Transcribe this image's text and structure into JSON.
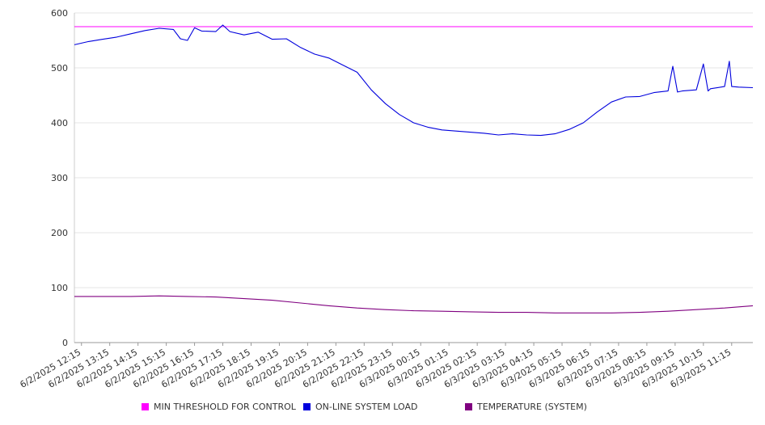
{
  "chart_data": {
    "type": "line",
    "ylim": [
      0,
      600
    ],
    "yticks": [
      0,
      100,
      200,
      300,
      400,
      500,
      600
    ],
    "xtick_labels": [
      "6/2/2025 12:15",
      "6/2/2025 13:15",
      "6/2/2025 14:15",
      "6/2/2025 15:15",
      "6/2/2025 16:15",
      "6/2/2025 17:15",
      "6/2/2025 18:15",
      "6/2/2025 19:15",
      "6/2/2025 20:15",
      "6/2/2025 21:15",
      "6/2/2025 22:15",
      "6/2/2025 23:15",
      "6/3/2025 00:15",
      "6/3/2025 01:15",
      "6/3/2025 02:15",
      "6/3/2025 03:15",
      "6/3/2025 04:15",
      "6/3/2025 05:15",
      "6/3/2025 06:15",
      "6/3/2025 07:15",
      "6/3/2025 08:15",
      "6/3/2025 09:15",
      "6/3/2025 10:15",
      "6/3/2025 11:15"
    ],
    "x_start": "6/2/2025 12:00",
    "x_end": "6/3/2025 12:00",
    "grid": true,
    "legend_position": "bottom",
    "series": [
      {
        "name": "MIN THRESHOLD FOR CONTROL",
        "color": "#ff00ff",
        "x": [
          "6/2/2025 12:00",
          "6/3/2025 12:00"
        ],
        "values": [
          575,
          575
        ]
      },
      {
        "name": "ON-LINE SYSTEM LOAD",
        "color": "#0000dd",
        "x": [
          "6/2/2025 12:00",
          "6/2/2025 12:30",
          "6/2/2025 13:00",
          "6/2/2025 13:30",
          "6/2/2025 14:00",
          "6/2/2025 14:30",
          "6/2/2025 15:00",
          "6/2/2025 15:30",
          "6/2/2025 15:45",
          "6/2/2025 16:00",
          "6/2/2025 16:15",
          "6/2/2025 16:30",
          "6/2/2025 17:00",
          "6/2/2025 17:15",
          "6/2/2025 17:30",
          "6/2/2025 18:00",
          "6/2/2025 18:30",
          "6/2/2025 19:00",
          "6/2/2025 19:30",
          "6/2/2025 20:00",
          "6/2/2025 20:30",
          "6/2/2025 21:00",
          "6/2/2025 21:30",
          "6/2/2025 22:00",
          "6/2/2025 22:30",
          "6/2/2025 23:00",
          "6/2/2025 23:30",
          "6/3/2025 00:00",
          "6/3/2025 00:30",
          "6/3/2025 01:00",
          "6/3/2025 01:30",
          "6/3/2025 02:00",
          "6/3/2025 02:30",
          "6/3/2025 03:00",
          "6/3/2025 03:30",
          "6/3/2025 04:00",
          "6/3/2025 04:30",
          "6/3/2025 05:00",
          "6/3/2025 05:30",
          "6/3/2025 06:00",
          "6/3/2025 06:30",
          "6/3/2025 07:00",
          "6/3/2025 07:30",
          "6/3/2025 08:00",
          "6/3/2025 08:30",
          "6/3/2025 09:00",
          "6/3/2025 09:10",
          "6/3/2025 09:20",
          "6/3/2025 09:30",
          "6/3/2025 10:00",
          "6/3/2025 10:15",
          "6/3/2025 10:25",
          "6/3/2025 10:30",
          "6/3/2025 11:00",
          "6/3/2025 11:10",
          "6/3/2025 11:15",
          "6/3/2025 11:30",
          "6/3/2025 12:00"
        ],
        "values": [
          542,
          548,
          552,
          556,
          562,
          568,
          572,
          570,
          553,
          550,
          573,
          567,
          566,
          578,
          566,
          560,
          565,
          552,
          553,
          537,
          525,
          518,
          505,
          492,
          460,
          435,
          415,
          400,
          392,
          387,
          385,
          383,
          381,
          378,
          380,
          378,
          377,
          380,
          388,
          400,
          420,
          438,
          447,
          448,
          455,
          458,
          503,
          456,
          458,
          460,
          507,
          458,
          462,
          466,
          512,
          466,
          465,
          464
        ]
      },
      {
        "name": "TEMPERATURE (SYSTEM)",
        "color": "#800080",
        "x": [
          "6/2/2025 12:00",
          "6/2/2025 14:00",
          "6/2/2025 15:00",
          "6/2/2025 16:00",
          "6/2/2025 17:00",
          "6/2/2025 18:00",
          "6/2/2025 19:00",
          "6/2/2025 20:00",
          "6/2/2025 21:00",
          "6/2/2025 22:00",
          "6/2/2025 23:00",
          "6/3/2025 00:00",
          "6/3/2025 01:00",
          "6/3/2025 02:00",
          "6/3/2025 03:00",
          "6/3/2025 04:00",
          "6/3/2025 05:00",
          "6/3/2025 06:00",
          "6/3/2025 07:00",
          "6/3/2025 08:00",
          "6/3/2025 09:00",
          "6/3/2025 10:00",
          "6/3/2025 11:00",
          "6/3/2025 12:00"
        ],
        "values": [
          84,
          84,
          85,
          84,
          83,
          80,
          77,
          72,
          67,
          63,
          60,
          58,
          57,
          56,
          55,
          55,
          54,
          54,
          54,
          55,
          57,
          60,
          63,
          67
        ]
      }
    ]
  }
}
